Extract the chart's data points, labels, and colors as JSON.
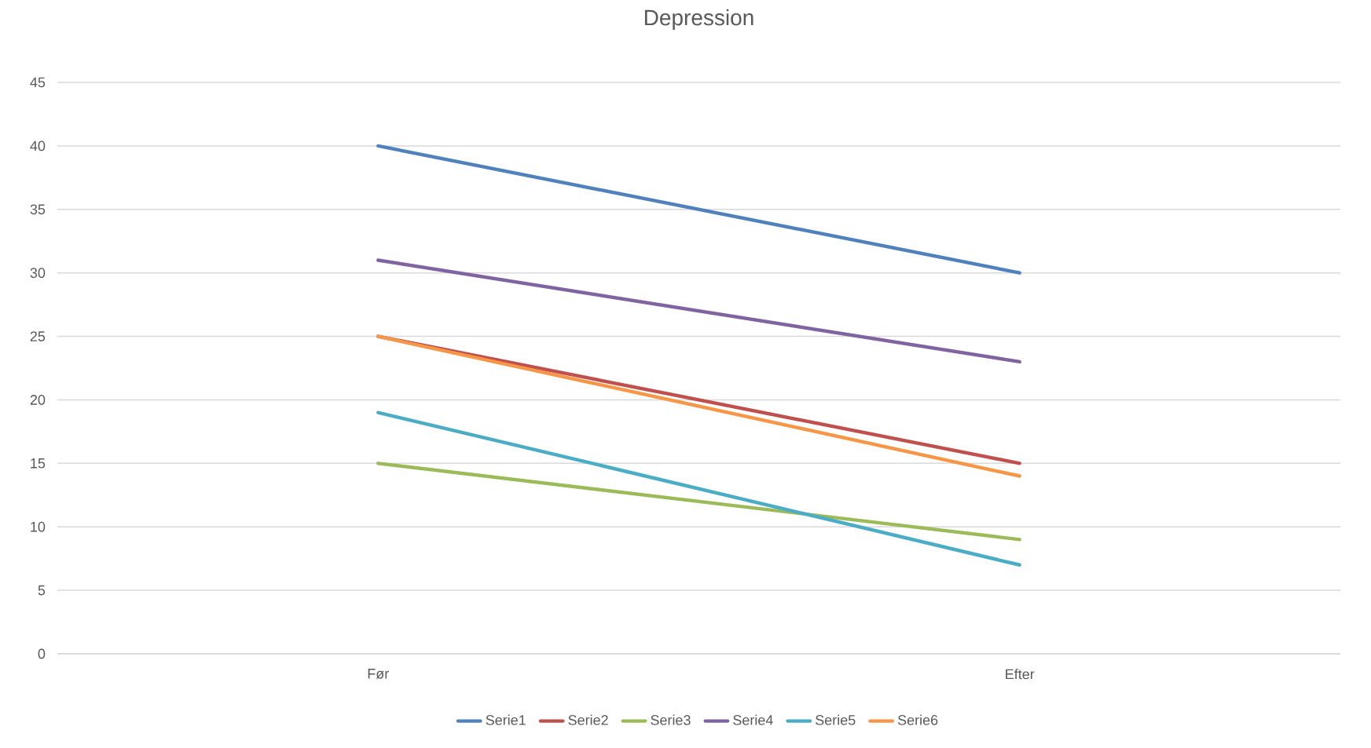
{
  "chart_data": {
    "type": "line",
    "title": "Depression",
    "categories": [
      "Før",
      "Efter"
    ],
    "series": [
      {
        "name": "Serie1",
        "color": "#4f81bd",
        "values": [
          40,
          30
        ]
      },
      {
        "name": "Serie2",
        "color": "#c0504d",
        "values": [
          25,
          15
        ]
      },
      {
        "name": "Serie3",
        "color": "#9bbb59",
        "values": [
          15,
          9
        ]
      },
      {
        "name": "Serie4",
        "color": "#8064a2",
        "values": [
          31,
          23
        ]
      },
      {
        "name": "Serie5",
        "color": "#4bacc6",
        "values": [
          19,
          7
        ]
      },
      {
        "name": "Serie6",
        "color": "#f79646",
        "values": [
          25,
          14
        ]
      }
    ],
    "ylim": [
      0,
      45
    ],
    "yticks": [
      0,
      5,
      10,
      15,
      20,
      25,
      30,
      35,
      40,
      45
    ],
    "grid": "y",
    "legend": "bottom"
  }
}
